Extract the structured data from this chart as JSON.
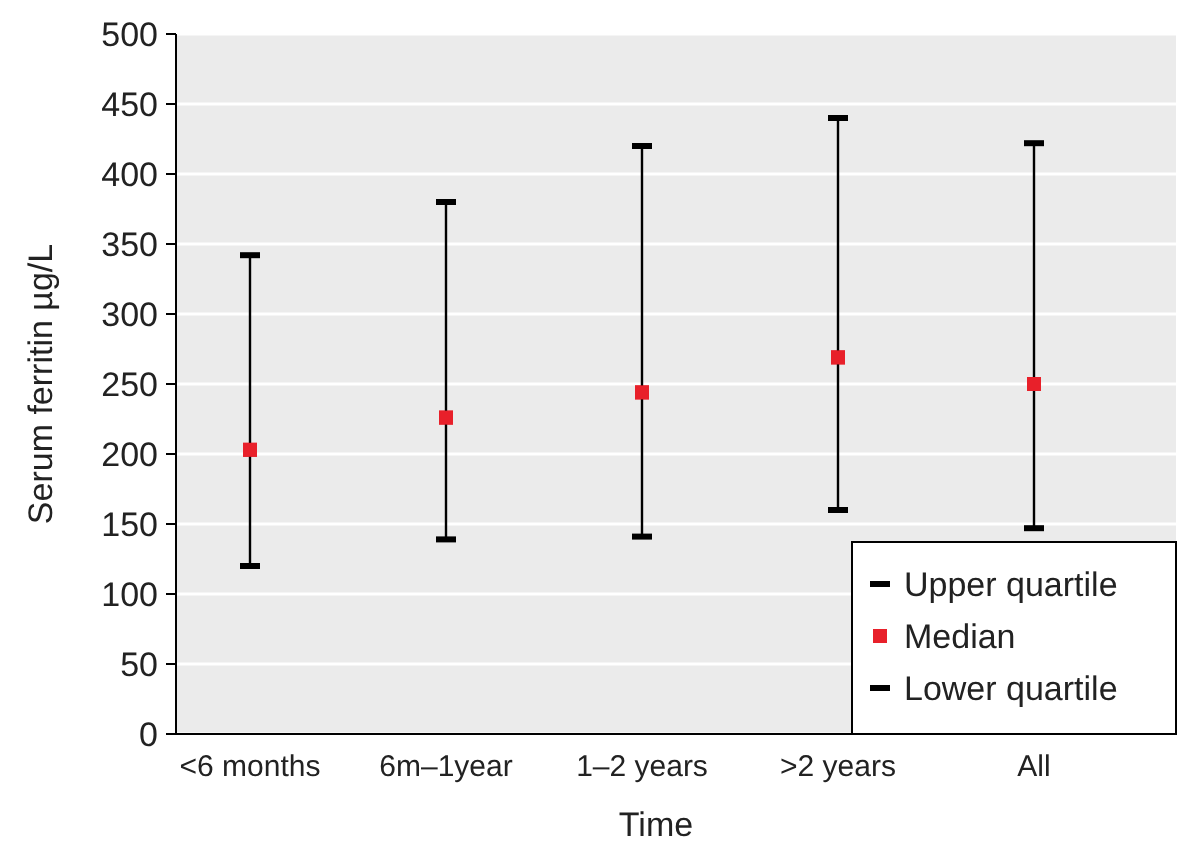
{
  "chart_data": {
    "type": "scatter",
    "xlabel": "Time",
    "ylabel": "Serum ferritin µg/L",
    "categories": [
      "<6 months",
      "6m–1year",
      "1–2 years",
      ">2 years",
      "All"
    ],
    "ylim": [
      0,
      500
    ],
    "yticks": [
      0,
      50,
      100,
      150,
      200,
      250,
      300,
      350,
      400,
      450,
      500
    ],
    "grid": "y",
    "legend": "bottom right",
    "series": [
      {
        "name": "Upper quartile",
        "color": "#000000",
        "values": [
          342,
          380,
          420,
          440,
          422
        ]
      },
      {
        "name": "Median",
        "color": "#e8202a",
        "marker": "square",
        "values": [
          203,
          226,
          244,
          269,
          250
        ]
      },
      {
        "name": "Lower quartile",
        "color": "#000000",
        "values": [
          120,
          139,
          141,
          160,
          147
        ]
      }
    ]
  }
}
